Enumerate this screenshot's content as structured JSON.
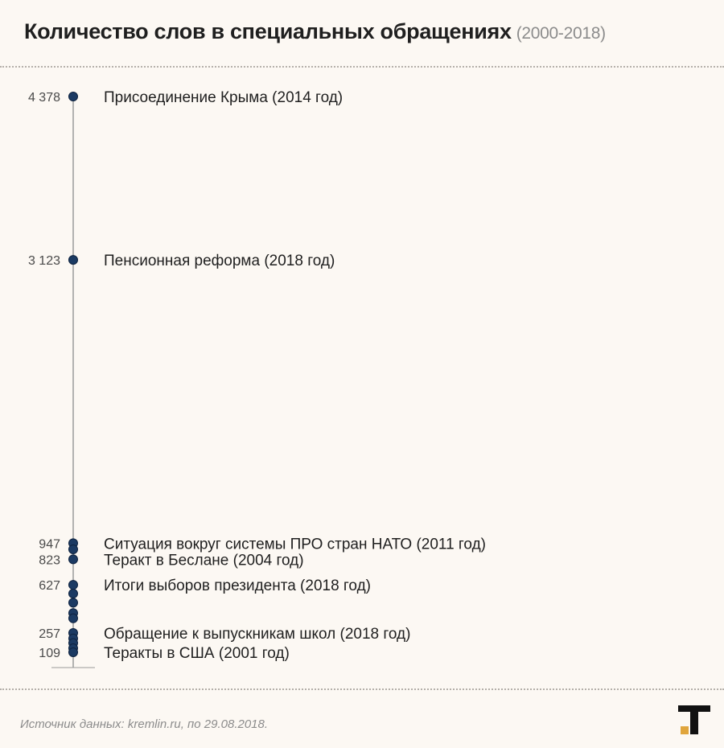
{
  "header": {
    "title": "Количество слов в специальных обращениях",
    "subtitle": "(2000-2018)"
  },
  "footer": {
    "source": "Источник данных: kremlin.ru, по 29.08.2018."
  },
  "colors": {
    "dot": "#1b3a63",
    "axis": "#9a9a9a",
    "logo_accent": "#e0a53c"
  },
  "chart_data": {
    "type": "scatter",
    "title": "Количество слов в специальных обращениях",
    "subtitle": "(2000-2018)",
    "ylim": [
      109,
      4378
    ],
    "points": [
      {
        "value": 4378,
        "value_label": "4 378",
        "label": "Присоединение Крыма (2014 год)"
      },
      {
        "value": 3123,
        "value_label": "3 123",
        "label": "Пенсионная реформа (2018 год)"
      },
      {
        "value": 947,
        "value_label": "947",
        "label": "Ситуация вокруг системы ПРО стран НАТО (2011 год)"
      },
      {
        "value": 900,
        "value_label": "",
        "label": ""
      },
      {
        "value": 823,
        "value_label": "823",
        "label": "Теракт в Беслане (2004 год)"
      },
      {
        "value": 627,
        "value_label": "627",
        "label": "Итоги выборов президента (2018 год)"
      },
      {
        "value": 560,
        "value_label": "",
        "label": ""
      },
      {
        "value": 490,
        "value_label": "",
        "label": ""
      },
      {
        "value": 410,
        "value_label": "",
        "label": ""
      },
      {
        "value": 370,
        "value_label": "",
        "label": ""
      },
      {
        "value": 257,
        "value_label": "257",
        "label": "Обращение к выпускникам школ (2018 год)"
      },
      {
        "value": 215,
        "value_label": "",
        "label": ""
      },
      {
        "value": 180,
        "value_label": "",
        "label": ""
      },
      {
        "value": 140,
        "value_label": "",
        "label": ""
      },
      {
        "value": 109,
        "value_label": "109",
        "label": "Теракты в США (2001 год)"
      }
    ]
  }
}
